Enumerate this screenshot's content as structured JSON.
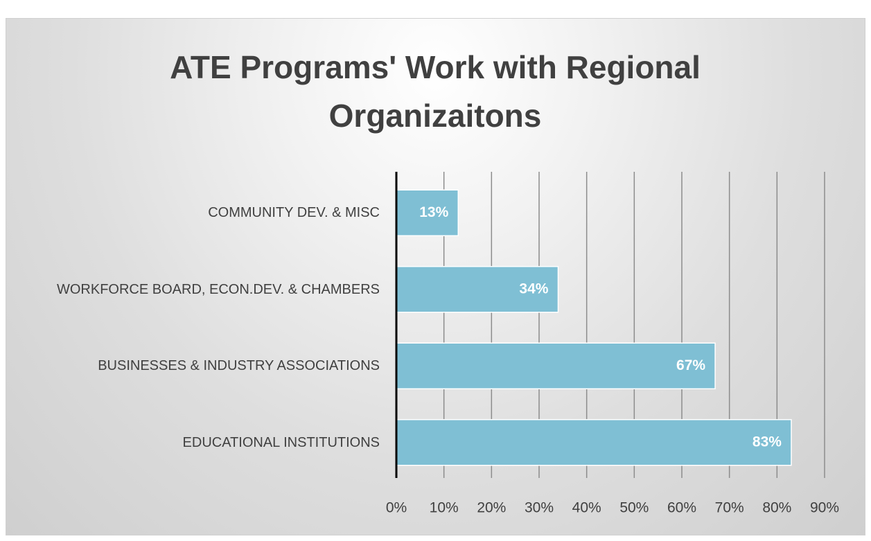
{
  "chart_data": {
    "type": "barh",
    "title": "ATE Programs' Work with Regional Organizaitons",
    "categories": [
      "COMMUNITY DEV. & MISC",
      "WORKFORCE  BOARD, ECON.DEV. & CHAMBERS",
      "BUSINESSES & INDUSTRY ASSOCIATIONS",
      "EDUCATIONAL INSTITUTIONS"
    ],
    "values": [
      13,
      34,
      67,
      83
    ],
    "value_labels": [
      "13%",
      "34%",
      "67%",
      "83%"
    ],
    "color": "#7fbfd4",
    "xlim": [
      0,
      90
    ],
    "xticks": [
      {
        "value": 0,
        "label": "0%"
      },
      {
        "value": 10,
        "label": "10%"
      },
      {
        "value": 20,
        "label": "20%"
      },
      {
        "value": 30,
        "label": "30%"
      },
      {
        "value": 40,
        "label": "40%"
      },
      {
        "value": 50,
        "label": "50%"
      },
      {
        "value": 60,
        "label": "60%"
      },
      {
        "value": 70,
        "label": "70%"
      },
      {
        "value": 80,
        "label": "80%"
      },
      {
        "value": 90,
        "label": "90%"
      }
    ],
    "grid": true
  }
}
